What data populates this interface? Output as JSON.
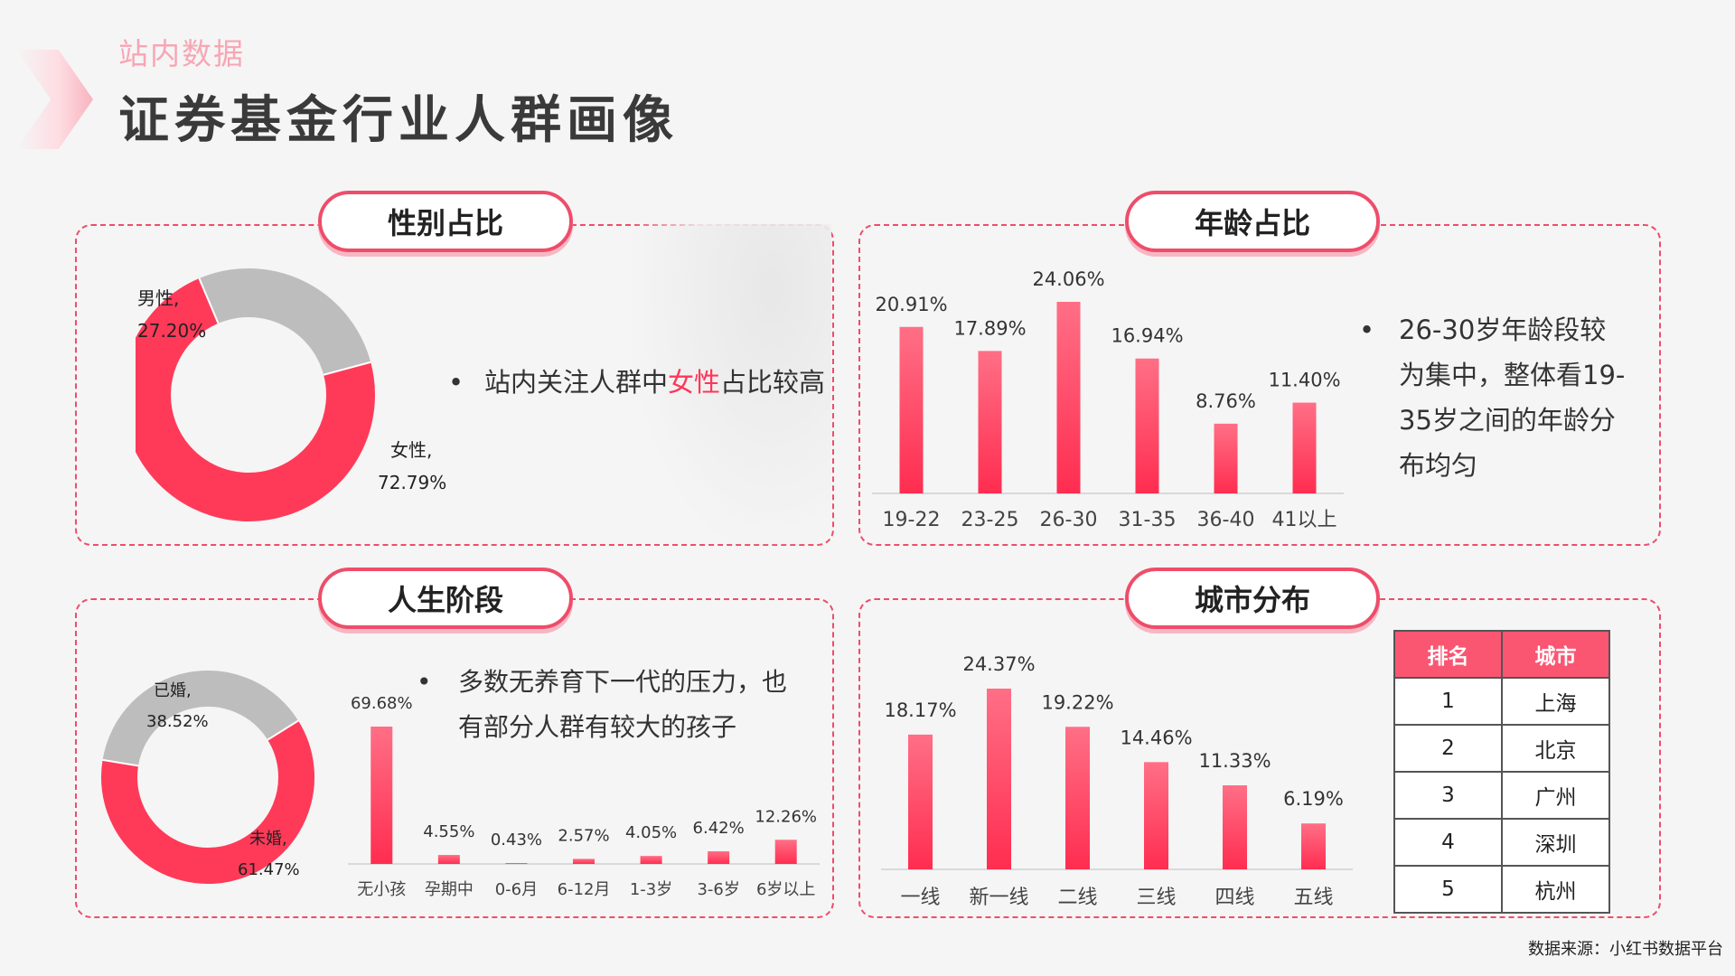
{
  "header": {
    "subtitle": "站内数据",
    "title": "证券基金行业人群画像"
  },
  "gender": {
    "title": "性别占比",
    "bullet": {
      "pre": "站内关注人群中",
      "highlight": "女性",
      "post": "占比较高"
    },
    "chart_data": {
      "type": "pie",
      "categories": [
        "女性",
        "男性"
      ],
      "values": [
        72.79,
        27.2
      ],
      "labels": [
        "72.79%",
        "27.20%"
      ],
      "colors": [
        "#ff3a59",
        "#bdbdbd"
      ]
    }
  },
  "age": {
    "title": "年龄占比",
    "bullet": "26-30岁年龄段较为集中，整体看19-35岁之间的年龄分布均匀",
    "bullet_lines": [
      "26-30岁年龄段较",
      "为集中，整体看19-",
      "35岁之间的年龄分",
      "布均匀"
    ],
    "chart_data": {
      "type": "bar",
      "categories": [
        "19-22",
        "23-25",
        "26-30",
        "31-35",
        "36-40",
        "41以上"
      ],
      "values": [
        20.91,
        17.89,
        24.06,
        16.94,
        8.76,
        11.4
      ],
      "labels": [
        "20.91%",
        "17.89%",
        "24.06%",
        "16.94%",
        "8.76%",
        "11.40%"
      ]
    }
  },
  "life": {
    "title": "人生阶段",
    "bullet_lines": [
      "多数无养育下一代的压力，也",
      "有部分人群有较大的孩子"
    ],
    "pie": {
      "type": "pie",
      "categories": [
        "未婚",
        "已婚"
      ],
      "values": [
        61.47,
        38.52
      ],
      "labels": [
        "61.47%",
        "38.52%"
      ],
      "colors": [
        "#ff3a59",
        "#bdbdbd"
      ]
    },
    "bars": {
      "type": "bar",
      "categories": [
        "无小孩",
        "孕期中",
        "0-6月",
        "6-12月",
        "1-3岁",
        "3-6岁",
        "6岁以上"
      ],
      "values": [
        69.68,
        4.55,
        0.43,
        2.57,
        4.05,
        6.42,
        12.26
      ],
      "labels": [
        "69.68%",
        "4.55%",
        "0.43%",
        "2.57%",
        "4.05%",
        "6.42%",
        "12.26%"
      ]
    }
  },
  "city": {
    "title": "城市分布",
    "chart_data": {
      "type": "bar",
      "categories": [
        "一线",
        "新一线",
        "二线",
        "三线",
        "四线",
        "五线"
      ],
      "values": [
        18.17,
        24.37,
        19.22,
        14.46,
        11.33,
        6.19
      ],
      "labels": [
        "18.17%",
        "24.37%",
        "19.22%",
        "14.46%",
        "11.33%",
        "6.19%"
      ]
    },
    "table": {
      "headers": [
        "排名",
        "城市"
      ],
      "rows": [
        [
          "1",
          "上海"
        ],
        [
          "2",
          "北京"
        ],
        [
          "3",
          "广州"
        ],
        [
          "4",
          "深圳"
        ],
        [
          "5",
          "杭州"
        ]
      ]
    }
  },
  "source": "数据来源：小红书数据平台",
  "colors": {
    "accent": "#ff3a59",
    "grey": "#bdbdbd",
    "border": "#ee4d6a"
  }
}
